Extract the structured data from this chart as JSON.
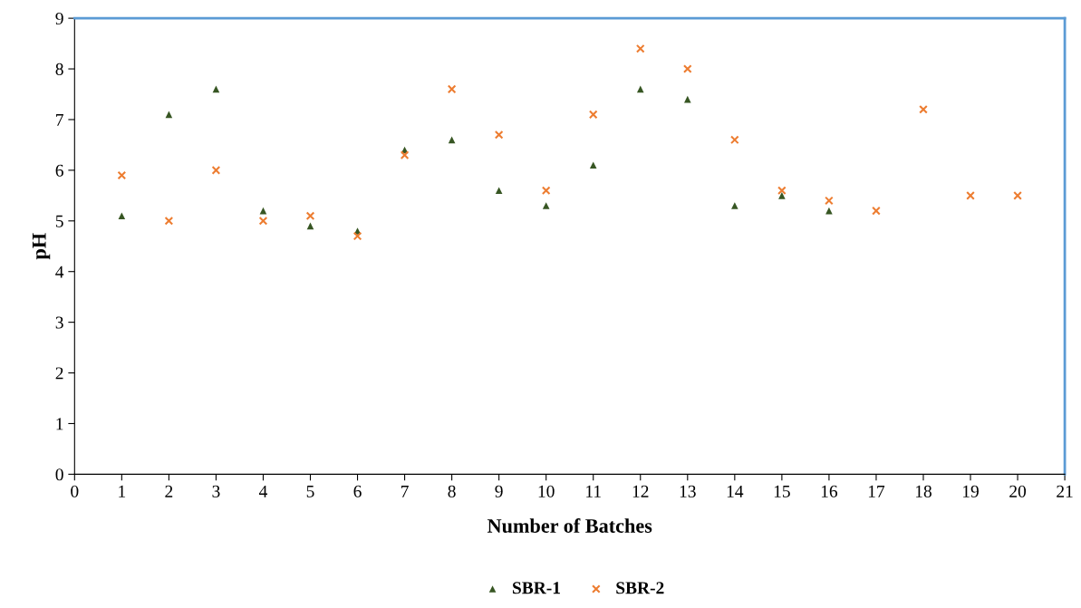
{
  "chart_data": {
    "type": "scatter",
    "xlabel": "Number of Batches",
    "ylabel": "pH",
    "x": [
      1,
      2,
      3,
      4,
      5,
      6,
      7,
      8,
      9,
      10,
      11,
      12,
      13,
      14,
      15,
      16,
      17,
      18,
      19,
      20
    ],
    "series": [
      {
        "name": "SBR-1",
        "color": "#375623",
        "marker": "triangle",
        "values": [
          5.1,
          7.1,
          7.6,
          5.2,
          4.9,
          4.8,
          6.4,
          6.6,
          5.6,
          5.3,
          6.1,
          7.6,
          7.4,
          5.3,
          5.5,
          5.2,
          null,
          null,
          null,
          null
        ]
      },
      {
        "name": "SBR-2",
        "color": "#ed7d31",
        "marker": "cross",
        "values": [
          5.9,
          5.0,
          6.0,
          5.0,
          5.1,
          4.7,
          6.3,
          7.6,
          6.7,
          5.6,
          7.1,
          8.4,
          8.0,
          6.6,
          5.6,
          5.4,
          5.2,
          7.2,
          5.5,
          5.5
        ]
      }
    ],
    "xlim": [
      0,
      21
    ],
    "xticks": [
      0,
      1,
      2,
      3,
      4,
      5,
      6,
      7,
      8,
      9,
      10,
      11,
      12,
      13,
      14,
      15,
      16,
      17,
      18,
      19,
      20,
      21
    ],
    "ylim": [
      0,
      9
    ],
    "yticks": [
      0,
      1,
      2,
      3,
      4,
      5,
      6,
      7,
      8,
      9
    ],
    "grid": false,
    "legend": "bottom"
  }
}
